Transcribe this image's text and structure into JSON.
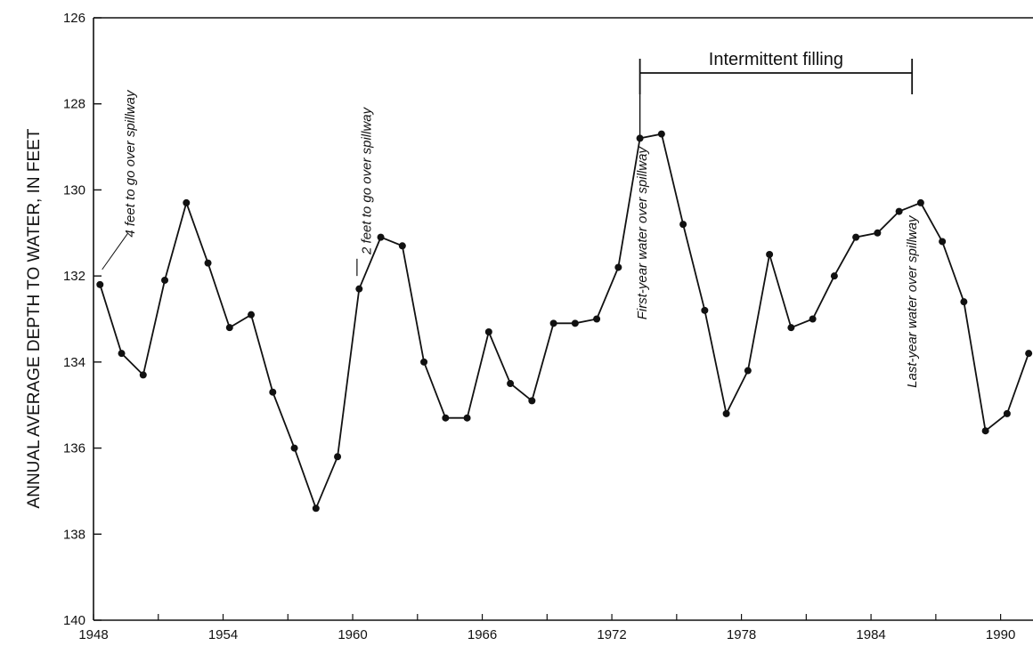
{
  "chart_data": {
    "type": "line",
    "title": "",
    "xlabel": "",
    "ylabel": "ANNUAL AVERAGE DEPTH TO WATER, IN FEET",
    "xlim": [
      1948,
      1991.5
    ],
    "ylim": [
      126,
      140
    ],
    "y_inverted": true,
    "grid": false,
    "x_ticks": [
      1948,
      1954,
      1960,
      1966,
      1972,
      1978,
      1984,
      1990
    ],
    "y_ticks": [
      126,
      128,
      130,
      132,
      134,
      136,
      138,
      140
    ],
    "series": [
      {
        "name": "",
        "x": [
          1948.3,
          1949.3,
          1950.3,
          1951.3,
          1952.3,
          1953.3,
          1954.3,
          1955.3,
          1956.3,
          1957.3,
          1958.3,
          1959.3,
          1960.3,
          1961.3,
          1962.3,
          1963.3,
          1964.3,
          1965.3,
          1966.3,
          1967.3,
          1968.3,
          1969.3,
          1970.3,
          1971.3,
          1972.3,
          1973.3,
          1974.3,
          1975.3,
          1976.3,
          1977.3,
          1978.3,
          1979.3,
          1980.3,
          1981.3,
          1982.3,
          1983.3,
          1984.3,
          1985.3,
          1986.3,
          1987.3,
          1988.3,
          1989.3,
          1990.3,
          1991.3
        ],
        "values": [
          132.2,
          133.8,
          134.3,
          132.1,
          130.3,
          131.7,
          133.2,
          132.9,
          134.7,
          136.0,
          137.4,
          136.2,
          132.3,
          131.1,
          131.3,
          134.0,
          135.3,
          135.3,
          133.3,
          134.5,
          134.9,
          133.1,
          133.1,
          133.0,
          131.8,
          128.8,
          128.7,
          130.8,
          132.8,
          135.2,
          134.2,
          131.5,
          133.2,
          133.0,
          132.0,
          131.1,
          131.0,
          130.5,
          130.3,
          131.2,
          132.6,
          135.6,
          135.2,
          133.8
        ]
      }
    ],
    "annotations": [
      {
        "text": "4 feet to go over spillway",
        "x": 1948.5,
        "y": 131.8
      },
      {
        "text": "2 feet to go over spillway",
        "x": 1960.2,
        "y": 132.0
      },
      {
        "text": "First-year water over spillway",
        "x": 1973.4,
        "y": 129.0
      },
      {
        "text": "Last-year water over spillway",
        "x": 1985.9,
        "y": 131.0
      }
    ],
    "span": {
      "label": "Intermittent filling",
      "x_start": 1973.3,
      "x_end": 1985.9
    }
  }
}
